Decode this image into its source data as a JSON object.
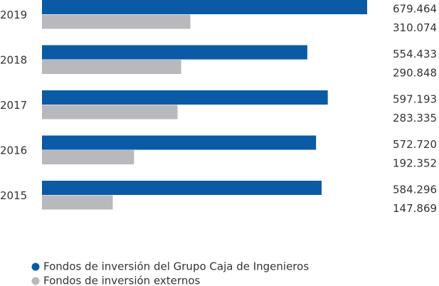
{
  "chart_data": {
    "type": "bar",
    "orientation": "horizontal",
    "categories": [
      "2019",
      "2018",
      "2017",
      "2016",
      "2015"
    ],
    "series": [
      {
        "name": "Fondos de inversión del Grupo Caja de Ingenieros",
        "color": "#0b5aa6",
        "values": [
          679464,
          554433,
          597193,
          572720,
          584296
        ],
        "value_labels": [
          "679.464",
          "554.433",
          "597.193",
          "572.720",
          "584.296"
        ]
      },
      {
        "name": "Fondos de inversión externos",
        "color": "#b9b9bd",
        "values": [
          310074,
          290848,
          283335,
          192352,
          147869
        ],
        "value_labels": [
          "310.074",
          "290.848",
          "283.335",
          "192.352",
          "147.869"
        ]
      }
    ]
  }
}
